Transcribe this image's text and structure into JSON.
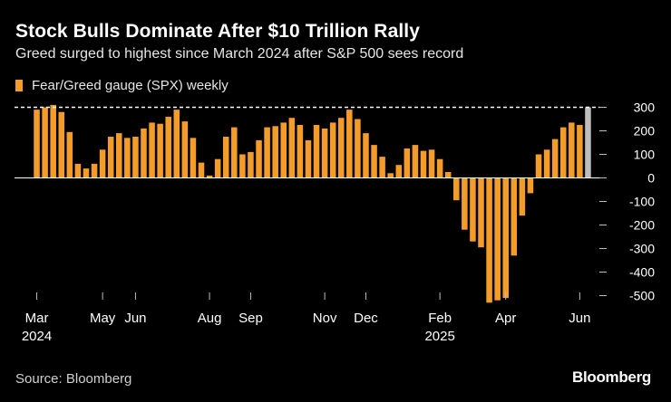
{
  "header": {
    "title": "Stock Bulls Dominate After $10 Trillion Rally",
    "subtitle": "Greed surged to highest since March 2024 after S&P 500 sees record"
  },
  "legend": {
    "label": "Fear/Greed gauge (SPX) weekly"
  },
  "footer": {
    "source": "Source: Bloomberg",
    "brand": "Bloomberg"
  },
  "colors": {
    "background": "#000000",
    "bar": "#f39c2a",
    "highlight_bar": "#bdbdbd",
    "reference_line": "#ffffff",
    "text": "#ffffff",
    "axis": "#bfbfbf"
  },
  "chart_data": {
    "type": "bar",
    "title": "Stock Bulls Dominate After $10 Trillion Rally",
    "subtitle": "Greed surged to highest since March 2024 after S&P 500 sees record",
    "series": [
      {
        "name": "Fear/Greed gauge (SPX) weekly",
        "values": [
          290,
          300,
          310,
          280,
          195,
          60,
          40,
          60,
          120,
          175,
          190,
          170,
          175,
          210,
          235,
          230,
          260,
          290,
          240,
          170,
          65,
          10,
          80,
          175,
          215,
          100,
          110,
          160,
          215,
          220,
          235,
          255,
          225,
          160,
          225,
          210,
          235,
          255,
          290,
          250,
          190,
          140,
          90,
          20,
          55,
          125,
          140,
          115,
          120,
          80,
          25,
          -95,
          -220,
          -270,
          -295,
          -530,
          -520,
          -510,
          -330,
          -160,
          -65,
          100,
          120,
          165,
          215,
          235,
          225,
          300
        ]
      }
    ],
    "highlight_index": 67,
    "reference_line": {
      "value": 300,
      "style": "dashed"
    },
    "x_ticks": [
      {
        "index": 0,
        "label": "Mar",
        "year": "2024"
      },
      {
        "index": 8,
        "label": "May",
        "year": ""
      },
      {
        "index": 12,
        "label": "Jun",
        "year": ""
      },
      {
        "index": 21,
        "label": "Aug",
        "year": ""
      },
      {
        "index": 26,
        "label": "Sep",
        "year": ""
      },
      {
        "index": 35,
        "label": "Nov",
        "year": ""
      },
      {
        "index": 40,
        "label": "Dec",
        "year": ""
      },
      {
        "index": 49,
        "label": "Feb",
        "year": "2025"
      },
      {
        "index": 57,
        "label": "Apr",
        "year": ""
      },
      {
        "index": 66,
        "label": "Jun",
        "year": ""
      }
    ],
    "y_ticks": [
      300,
      200,
      100,
      0,
      -100,
      -200,
      -300,
      -400,
      -500
    ],
    "y_tick_labels": [
      "300",
      "200",
      "100",
      "0",
      "-100",
      "-200",
      "-300",
      "-400",
      "-500"
    ],
    "ylim": [
      -530,
      310
    ],
    "ylabel": "",
    "xlabel": ""
  }
}
